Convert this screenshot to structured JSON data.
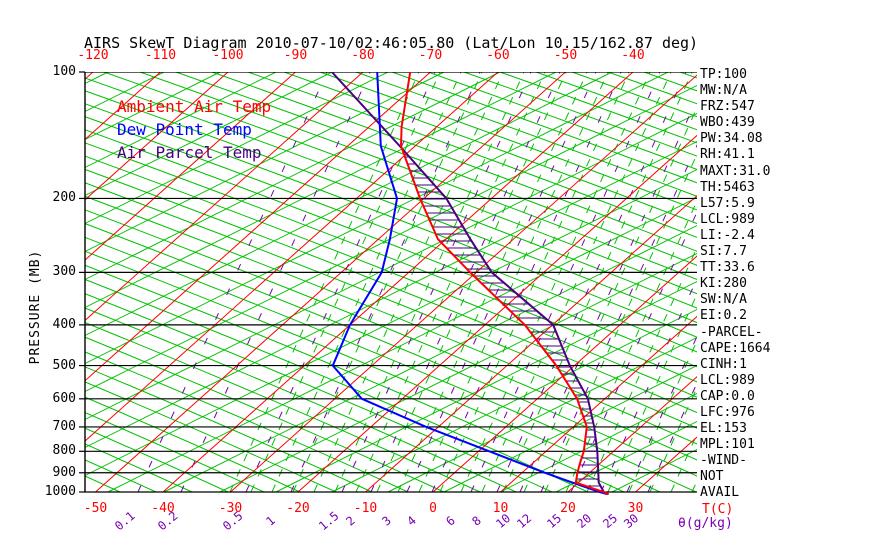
{
  "title": "AIRS SkewT Diagram 2010-07-10/02:46:05.80 (Lat/Lon 10.15/162.87 deg)",
  "colors": {
    "isotherm_red": "#ff0000",
    "adiabat_green": "#00c000",
    "mixing_purple": "#7a00b4",
    "parcel_purple": "#4b0082",
    "dewpoint_blue": "#0000ff",
    "axis_black": "#000000"
  },
  "legend": [
    {
      "label": "Ambient Air Temp",
      "color": "#ff0000"
    },
    {
      "label": "Dew Point Temp",
      "color": "#0000ff"
    },
    {
      "label": "Air Parcel Temp",
      "color": "#4b0082"
    }
  ],
  "y_axis": {
    "label": "PRESSURE (MB)",
    "ticks": [
      100,
      200,
      300,
      400,
      500,
      600,
      700,
      800,
      900,
      1000
    ]
  },
  "x_axis_top": {
    "ticks": [
      -120,
      -110,
      -100,
      -90,
      -80,
      -70,
      -60,
      -50,
      -40
    ]
  },
  "x_axis_bottom": {
    "ticks": [
      -50,
      -40,
      -30,
      -20,
      -10,
      0,
      10,
      20,
      30
    ],
    "unit_label": "T(C)"
  },
  "mixing_axis": {
    "labels": [
      "0.1",
      "0.2",
      "0.5",
      "1",
      "1.5",
      "2",
      "3",
      "4",
      "6",
      "8",
      "10",
      "12",
      "15",
      "20",
      "25",
      "30"
    ],
    "unit_label": "θ(g/kg)"
  },
  "panel": {
    "lines": [
      "TP:100",
      "MW:N/A",
      "FRZ:547",
      "WBO:439",
      "PW:34.08",
      "RH:41.1",
      "MAXT:31.0",
      "TH:5463",
      "L57:5.9",
      "LCL:989",
      "LI:-2.4",
      "SI:7.7",
      "TT:33.6",
      "KI:280",
      "SW:N/A",
      "EI:0.2",
      "-PARCEL-",
      "CAPE:1664",
      "CINH:1",
      "LCL:989",
      "CAP:0.0",
      "LFC:976",
      "EL:153",
      "MPL:101",
      "-WIND-",
      "NOT",
      "AVAIL"
    ]
  },
  "chart_data": {
    "type": "line",
    "title": "AIRS SkewT Diagram 2010-07-10/02:46:05.80 (Lat/Lon 10.15/162.87 deg)",
    "x_axis": {
      "label": "T(C)",
      "bottom_ticks": [
        -50,
        -40,
        -30,
        -20,
        -10,
        0,
        10,
        20,
        30
      ],
      "top_ticks": [
        -120,
        -110,
        -100,
        -90,
        -80,
        -70,
        -60,
        -50,
        -40
      ]
    },
    "y_axis": {
      "label": "PRESSURE (MB)",
      "scale": "log",
      "range": [
        100,
        1000
      ],
      "ticks": [
        100,
        200,
        300,
        400,
        500,
        600,
        700,
        800,
        900,
        1000
      ]
    },
    "mixing_ratio_lines_g_per_kg": [
      0.1,
      0.2,
      0.5,
      1,
      1.5,
      2,
      3,
      4,
      6,
      8,
      10,
      12,
      15,
      20,
      25,
      30
    ],
    "grid": {
      "isotherm_step_C": 10,
      "style": "skewed"
    },
    "legend_position": "top-left-inside",
    "series": [
      {
        "name": "Ambient Air Temp",
        "color": "#ff0000",
        "points_p_mb_t_c": [
          [
            1012,
            26.4
          ],
          [
            1000,
            25.3
          ],
          [
            975,
            22.5
          ],
          [
            950,
            19.6
          ],
          [
            900,
            18.2
          ],
          [
            850,
            16.9
          ],
          [
            800,
            15.6
          ],
          [
            700,
            12.0
          ],
          [
            600,
            5.9
          ],
          [
            500,
            -2.7
          ],
          [
            400,
            -14.1
          ],
          [
            300,
            -30.9
          ],
          [
            250,
            -41.2
          ],
          [
            200,
            -50.6
          ],
          [
            150,
            -62.1
          ],
          [
            135,
            -65.2
          ],
          [
            100,
            -73.0
          ]
        ]
      },
      {
        "name": "Dew Point Temp",
        "color": "#0000ff",
        "points_p_mb_t_c": [
          [
            1012,
            26.2
          ],
          [
            1000,
            24.7
          ],
          [
            950,
            19.1
          ],
          [
            900,
            13.4
          ],
          [
            800,
            1.6
          ],
          [
            700,
            -11.8
          ],
          [
            600,
            -26.0
          ],
          [
            500,
            -35.8
          ],
          [
            400,
            -40.0
          ],
          [
            300,
            -44.0
          ],
          [
            250,
            -48.3
          ],
          [
            200,
            -54.0
          ],
          [
            150,
            -65.1
          ],
          [
            100,
            -77.9
          ]
        ]
      },
      {
        "name": "Air Parcel Temp",
        "color": "#4b0082",
        "points_p_mb_t_c": [
          [
            1012,
            26.3
          ],
          [
            1000,
            25.3
          ],
          [
            950,
            23.0
          ],
          [
            900,
            21.3
          ],
          [
            800,
            17.6
          ],
          [
            700,
            13.1
          ],
          [
            600,
            7.5
          ],
          [
            500,
            -0.7
          ],
          [
            400,
            -9.9
          ],
          [
            300,
            -27.7
          ],
          [
            250,
            -36.4
          ],
          [
            200,
            -46.7
          ],
          [
            150,
            -62.3
          ],
          [
            100,
            -84.6
          ]
        ]
      }
    ],
    "annotations": {
      "hatched_area": "between Ambient Air Temp and Air Parcel Temp curves (CAPE/CIN region)"
    }
  }
}
